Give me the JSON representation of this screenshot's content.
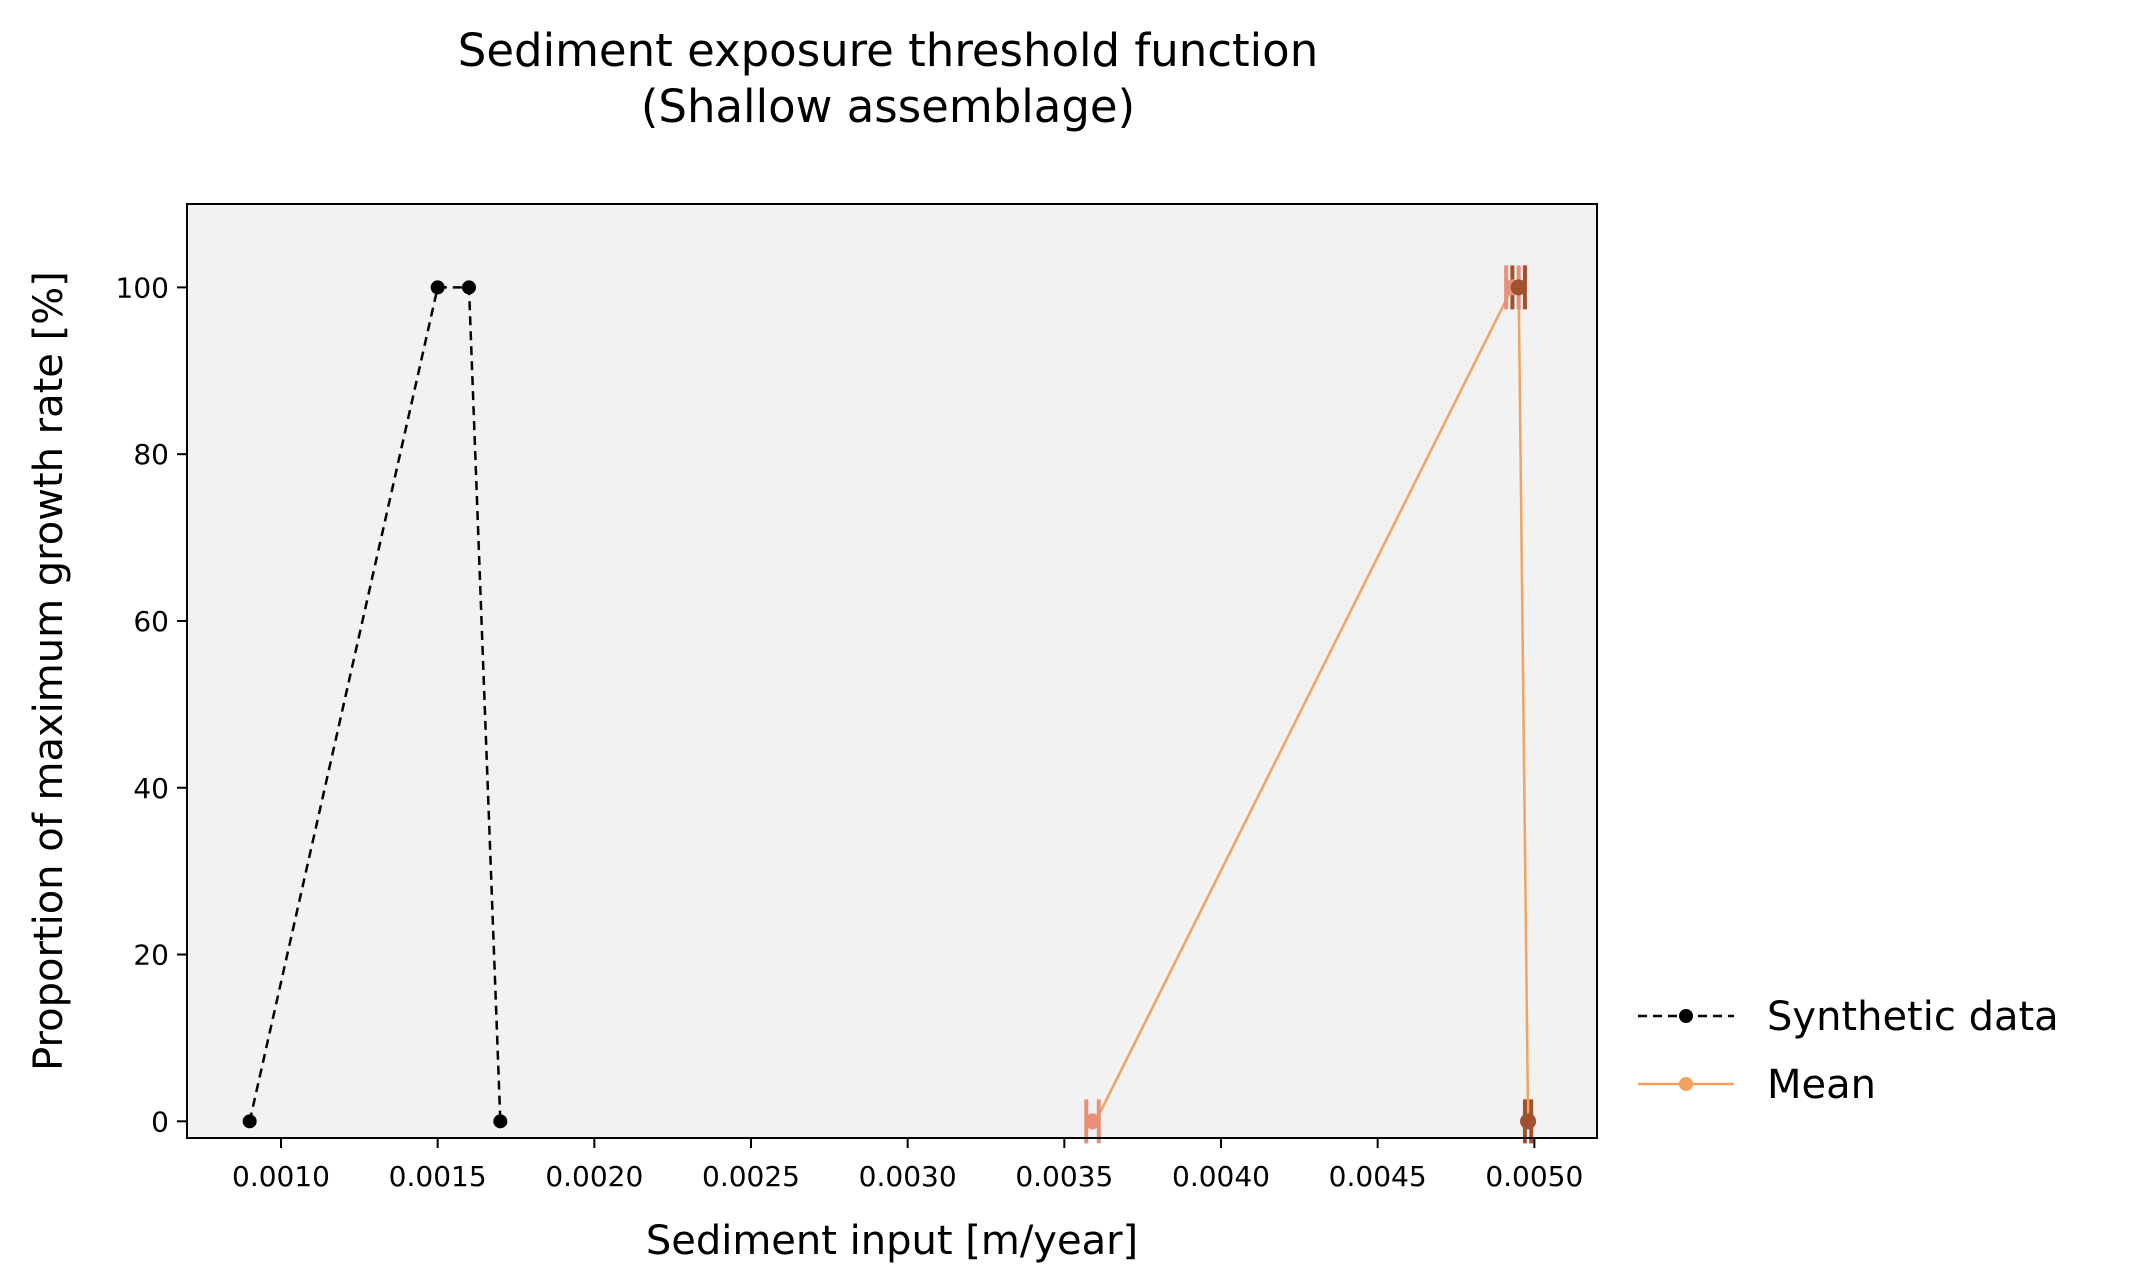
{
  "chart_data": {
    "type": "line",
    "title": "Sediment exposure threshold function",
    "subtitle": "(Shallow assemblage)",
    "xlabel": "Sediment input [m/year]",
    "ylabel": "Proportion of maximum growth rate [%]",
    "xlim": [
      0.0007,
      0.0052
    ],
    "ylim": [
      -2,
      110
    ],
    "x_ticks": [
      "0.0010",
      "0.0015",
      "0.0020",
      "0.0025",
      "0.0030",
      "0.0035",
      "0.0040",
      "0.0045",
      "0.0050"
    ],
    "y_ticks": [
      "0",
      "20",
      "40",
      "60",
      "80",
      "100"
    ],
    "grid": false,
    "legend_position": "right-bottom",
    "plot_background": "#f2f2f2",
    "series": [
      {
        "name": "Synthetic data",
        "style": "dashed",
        "color": "#000000",
        "x": [
          0.0009,
          0.0015,
          0.0016,
          0.0017
        ],
        "y": [
          0,
          100,
          100,
          0
        ]
      },
      {
        "name": "Mean",
        "style": "solid",
        "color": "#f2a25e",
        "x": [
          0.0036,
          0.00493,
          0.00495,
          0.00498
        ],
        "y": [
          0,
          100,
          100,
          0
        ]
      }
    ],
    "error_points": [
      {
        "x": 0.00359,
        "y": 0,
        "xerr": 2e-05,
        "color": "#e8907a"
      },
      {
        "x": 0.00493,
        "y": 100,
        "xerr": 2e-05,
        "color": "#e8907a"
      },
      {
        "x": 0.00495,
        "y": 100,
        "xerr": 2e-05,
        "color": "#a0522d"
      },
      {
        "x": 0.00498,
        "y": 0,
        "xerr": 1e-05,
        "color": "#a0522d"
      }
    ]
  }
}
